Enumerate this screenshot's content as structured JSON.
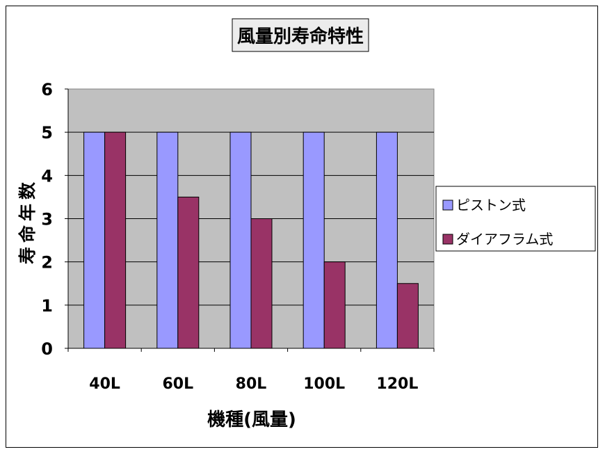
{
  "chart_data": {
    "type": "bar",
    "title": "風量別寿命特性",
    "xlabel": "機種(風量)",
    "ylabel": "寿命年数",
    "categories": [
      "40L",
      "60L",
      "80L",
      "100L",
      "120L"
    ],
    "series": [
      {
        "name": "ピストン式",
        "values": [
          5,
          5,
          5,
          5,
          5
        ],
        "color": "#9999ff"
      },
      {
        "name": "ダイアフラム式",
        "values": [
          5,
          3.5,
          3,
          2,
          1.5
        ],
        "color": "#993366"
      }
    ],
    "ylim": [
      0,
      6
    ],
    "yticks": [
      0,
      1,
      2,
      3,
      4,
      5,
      6
    ],
    "grid": true,
    "plot_background": "#c0c0c0",
    "legend_position": "right"
  }
}
